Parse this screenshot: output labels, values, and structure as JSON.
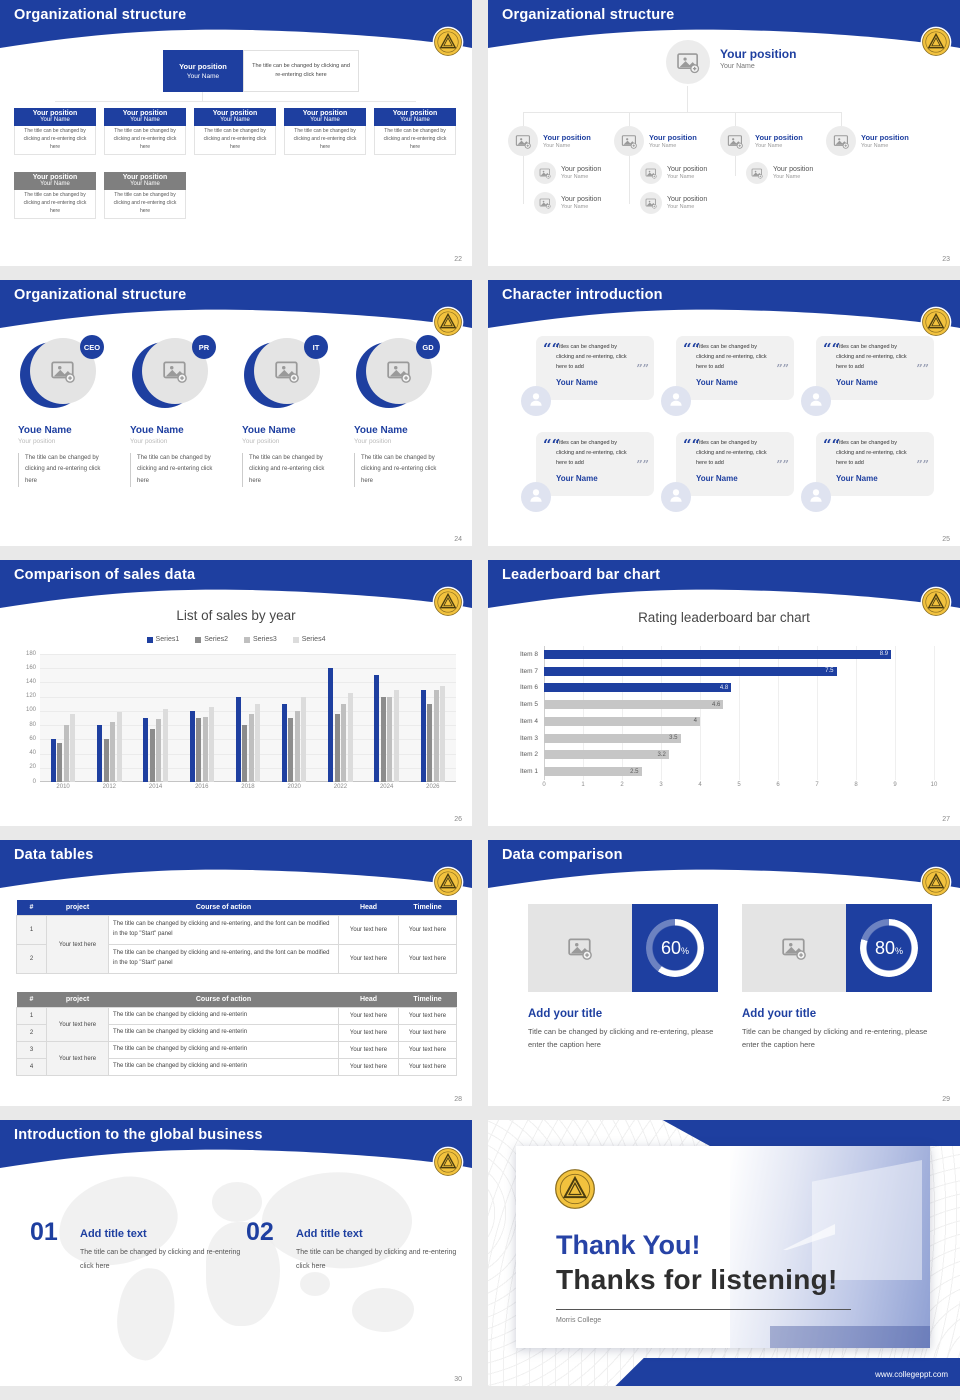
{
  "colors": {
    "brand": "#1E3FA0",
    "gray_header": "#7F7F7F",
    "gold": "#F2C23E"
  },
  "s22": {
    "header": "Organizational structure",
    "page": "22",
    "top": {
      "position": "Your position",
      "name": "Your Name"
    },
    "top_caption": "The title can be changed by clicking and re-entering click here",
    "row1": [
      {
        "position": "Your position",
        "name": "Your Name",
        "caption": "The title can be changed by clicking and re-entering click here"
      },
      {
        "position": "Your position",
        "name": "Your Name",
        "caption": "The title can be changed by clicking and re-entering click here"
      },
      {
        "position": "Your position",
        "name": "Your Name",
        "caption": "The title can be changed by clicking and re-entering click here"
      },
      {
        "position": "Your position",
        "name": "Your Name",
        "caption": "The title can be changed by clicking and re-entering click here"
      },
      {
        "position": "Your position",
        "name": "Your Name",
        "caption": "The title can be changed by clicking and re-entering click here"
      }
    ],
    "row2": [
      {
        "position": "Your position",
        "name": "Your Name",
        "caption": "The title can be changed by clicking and re-entering click here"
      },
      {
        "position": "Your position",
        "name": "Your Name",
        "caption": "The title can be changed by clicking and re-entering click here"
      }
    ]
  },
  "s23": {
    "header": "Organizational structure",
    "page": "23",
    "top": {
      "position": "Your position",
      "name": "Your Name"
    },
    "level2": [
      {
        "position": "Your position",
        "name": "Your Name"
      },
      {
        "position": "Your position",
        "name": "Your Name"
      },
      {
        "position": "Your position",
        "name": "Your Name"
      },
      {
        "position": "Your position",
        "name": "Your Name"
      }
    ],
    "level3": [
      {
        "position": "Your position",
        "name": "Your Name"
      },
      {
        "position": "Your position",
        "name": "Your Name"
      },
      {
        "position": "Your position",
        "name": "Your Name"
      }
    ],
    "level4": [
      {
        "position": "Your position",
        "name": "Your Name"
      },
      {
        "position": "Your position",
        "name": "Your Name"
      }
    ]
  },
  "s24": {
    "header": "Organizational structure",
    "page": "24",
    "members": [
      {
        "badge": "CEO",
        "name": "Youe Name",
        "position": "Your position",
        "caption": "The title can be changed by clicking and re-entering click here"
      },
      {
        "badge": "PR",
        "name": "Youe Name",
        "position": "Your position",
        "caption": "The title can be changed by clicking and re-entering click here"
      },
      {
        "badge": "IT",
        "name": "Youe Name",
        "position": "Your position",
        "caption": "The title can be changed by clicking and re-entering click here"
      },
      {
        "badge": "GD",
        "name": "Youe Name",
        "position": "Your position",
        "caption": "The title can be changed by clicking and re-entering click here"
      }
    ]
  },
  "s25": {
    "header": "Character introduction",
    "page": "25",
    "cards": [
      {
        "quote": "Titles can be changed by clicking and re-entering, click here to add",
        "name": "Your Name"
      },
      {
        "quote": "Titles can be changed by clicking and re-entering, click here to add",
        "name": "Your Name"
      },
      {
        "quote": "Titles can be changed by clicking and re-entering, click here to add",
        "name": "Your Name"
      },
      {
        "quote": "Titles can be changed by clicking and re-entering, click here to add",
        "name": "Your Name"
      },
      {
        "quote": "Titles can be changed by clicking and re-entering, click here to add",
        "name": "Your Name"
      },
      {
        "quote": "Titles can be changed by clicking and re-entering, click here to add",
        "name": "Your Name"
      }
    ]
  },
  "s26": {
    "header": "Comparison of sales data",
    "page": "26"
  },
  "s27": {
    "header": "Leaderboard bar chart",
    "page": "27"
  },
  "s28": {
    "header": "Data tables",
    "page": "28",
    "table1": {
      "headers": [
        "#",
        "project",
        "Course of action",
        "Head",
        "Timeline"
      ],
      "project": "Your text here",
      "rows": [
        {
          "num": "1",
          "action": "The title can be changed by clicking and re-entering, and the font can be modified in the top \"Start\" panel",
          "head": "Your text here",
          "timeline": "Your text here"
        },
        {
          "num": "2",
          "action": "The title can be changed by clicking and re-entering, and the font can be modified in the top \"Start\" panel",
          "head": "Your text here",
          "timeline": "Your text here"
        }
      ]
    },
    "table2": {
      "headers": [
        "#",
        "project",
        "Course of action",
        "Head",
        "Timeline"
      ],
      "project1": "Your text here",
      "project2": "Your text here",
      "rows": [
        {
          "num": "1",
          "action": "The title can be changed by clicking and re-enterin",
          "head": "Your text here",
          "timeline": "Your text here"
        },
        {
          "num": "2",
          "action": "The title can be changed by clicking and re-enterin",
          "head": "Your text here",
          "timeline": "Your text here"
        },
        {
          "num": "3",
          "action": "The title can be changed by clicking and re-enterin",
          "head": "Your text here",
          "timeline": "Your text here"
        },
        {
          "num": "4",
          "action": "The title can be changed by clicking and re-enterin",
          "head": "Your text here",
          "timeline": "Your text here"
        }
      ]
    }
  },
  "s29": {
    "header": "Data comparison",
    "page": "29",
    "percent_sign": "%",
    "panels": [
      {
        "percent": 60,
        "title": "Add your title",
        "caption": "Title can be changed by clicking and re-entering, please enter the caption here"
      },
      {
        "percent": 80,
        "title": "Add your title",
        "caption": "Title can be changed by clicking and re-entering, please enter the caption here"
      }
    ]
  },
  "s30": {
    "header": "Introduction to the global business",
    "page": "30",
    "items": [
      {
        "num": "01",
        "title": "Add title text",
        "caption": "The title can be changed by clicking and re-entering click here"
      },
      {
        "num": "02",
        "title": "Add title text",
        "caption": "The title can be changed by clicking and re-entering click here"
      }
    ]
  },
  "s31": {
    "title1": "Thank You!",
    "title2": "Thanks for listening!",
    "subtitle": "Morris College",
    "url": "www.collegeppt.com"
  },
  "chart_data": [
    {
      "type": "bar",
      "title": "List of sales by year",
      "categories": [
        "2010",
        "2012",
        "2014",
        "2016",
        "2018",
        "2020",
        "2022",
        "2024",
        "2026"
      ],
      "series": [
        {
          "name": "Series1",
          "color": "#1E3FA0",
          "values": [
            60,
            80,
            90,
            100,
            120,
            110,
            160,
            150,
            130
          ]
        },
        {
          "name": "Series2",
          "color": "#8C8C8C",
          "values": [
            55,
            60,
            75,
            90,
            80,
            90,
            95,
            120,
            110
          ]
        },
        {
          "name": "Series3",
          "color": "#BFBFBF",
          "values": [
            80,
            85,
            88,
            92,
            95,
            100,
            110,
            120,
            130
          ]
        },
        {
          "name": "Series4",
          "color": "#DCDCDC",
          "values": [
            95,
            98,
            102,
            105,
            110,
            120,
            125,
            130,
            135
          ]
        }
      ],
      "xlabel": "",
      "ylabel": "",
      "ylim": [
        0,
        180
      ],
      "ytick_step": 20,
      "grid": true,
      "legend_position": "top"
    },
    {
      "type": "bar",
      "orientation": "horizontal",
      "title": "Rating leaderboard bar chart",
      "categories": [
        "Item 8",
        "Item 7",
        "Item 6",
        "Item 5",
        "Item 4",
        "Item 3",
        "Item 2",
        "Item 1"
      ],
      "values": [
        8.9,
        7.5,
        4.8,
        4.6,
        4,
        3.5,
        3.2,
        2.5
      ],
      "labels": [
        "8.9",
        "7.5",
        "4.8",
        "4.6",
        "4",
        "3.5",
        "3.2",
        "2.5"
      ],
      "colors": [
        "#1E3FA0",
        "#1E3FA0",
        "#1E3FA0",
        "#C6C6C6",
        "#C6C6C6",
        "#C6C6C6",
        "#C6C6C6",
        "#C6C6C6"
      ],
      "xlim": [
        0,
        10
      ],
      "xtick_step": 1,
      "grid": true
    }
  ]
}
